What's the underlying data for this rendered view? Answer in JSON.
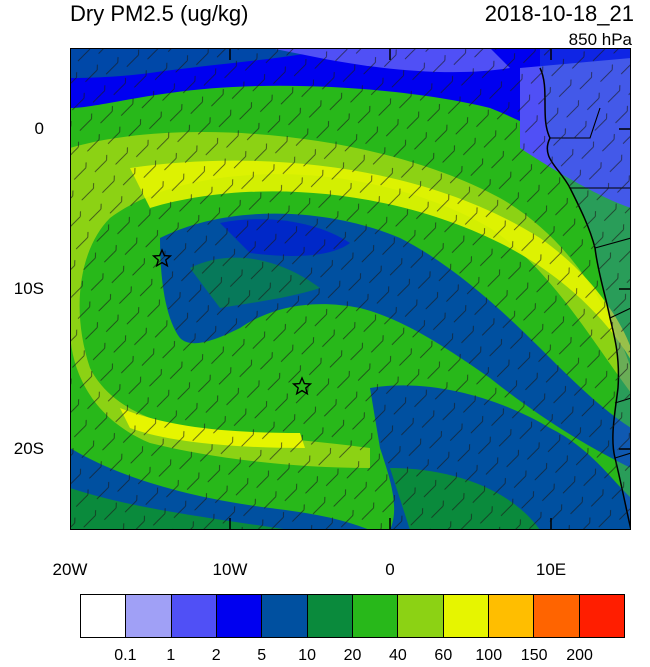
{
  "header": {
    "title": "Dry PM2.5 (ug/kg)",
    "datetime": "2018-10-18_21",
    "level": "850 hPa"
  },
  "map": {
    "region": "Southeast Atlantic / southwest Africa",
    "lon_range": [
      -20,
      15
    ],
    "lat_range": [
      -25,
      5
    ],
    "y_ticks": [
      {
        "lat": 0,
        "label": "0"
      },
      {
        "lat": -10,
        "label": "10S"
      },
      {
        "lat": -20,
        "label": "20S"
      }
    ],
    "x_ticks": [
      {
        "lon": -20,
        "label": "20W"
      },
      {
        "lon": -10,
        "label": "10W"
      },
      {
        "lon": 0,
        "label": "0"
      },
      {
        "lon": 10,
        "label": "10E"
      }
    ],
    "markers": [
      {
        "name": "site-star-1",
        "lon": -14.4,
        "lat": -8.0
      },
      {
        "name": "site-star-2",
        "lon": -5.7,
        "lat": -16.0
      }
    ],
    "wind_barbs": true,
    "ocean_tint_note": "filled contours"
  },
  "colorbar": {
    "colors": [
      "#ffffff",
      "#a0a0f6",
      "#5050f6",
      "#0000f0",
      "#0050a0",
      "#0a8a3c",
      "#28b81a",
      "#8cd214",
      "#e6f500",
      "#ffbe00",
      "#ff6400",
      "#ff1e00"
    ],
    "labels": [
      "0.1",
      "1",
      "2",
      "5",
      "10",
      "20",
      "40",
      "60",
      "100",
      "150",
      "200"
    ]
  }
}
